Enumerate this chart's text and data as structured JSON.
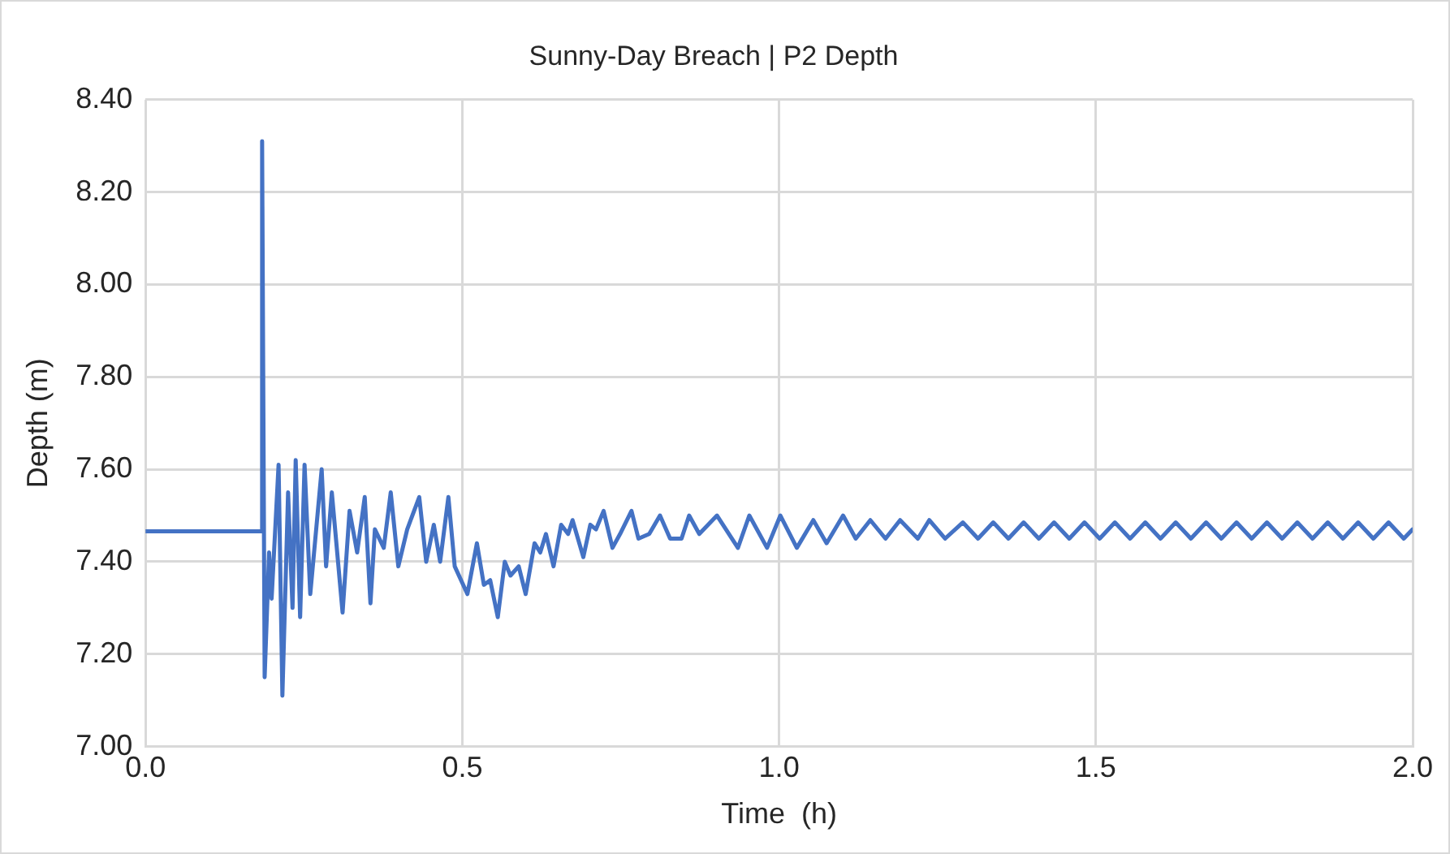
{
  "chart_data": {
    "type": "line",
    "title": "Sunny-Day Breach | P2 Depth",
    "xlabel": "Time  (h)",
    "ylabel": "Depth (m)",
    "xlim": [
      0,
      2
    ],
    "xticks": [
      {
        "value": 0,
        "label": "0.0"
      },
      {
        "value": 0.5,
        "label": "0.5"
      },
      {
        "value": 1,
        "label": "1.0"
      },
      {
        "value": 1.5,
        "label": "1.5"
      },
      {
        "value": 2,
        "label": "2.0"
      }
    ],
    "ylim": [
      7,
      8.4
    ],
    "yticks": [
      {
        "value": 7,
        "label": "7.00"
      },
      {
        "value": 7.2,
        "label": "7.20"
      },
      {
        "value": 7.4,
        "label": "7.40"
      },
      {
        "value": 7.6,
        "label": "7.60"
      },
      {
        "value": 7.8,
        "label": "7.80"
      },
      {
        "value": 8,
        "label": "8.00"
      },
      {
        "value": 8.2,
        "label": "8.20"
      },
      {
        "value": 8.4,
        "label": "8.40"
      }
    ],
    "grid": true,
    "legend": false,
    "marker": "none",
    "line_style": "solid",
    "series": [
      {
        "color": "#4472c4",
        "x": [
          0,
          0.183,
          0.184,
          0.188,
          0.195,
          0.199,
          0.21,
          0.216,
          0.225,
          0.232,
          0.237,
          0.244,
          0.251,
          0.26,
          0.278,
          0.285,
          0.294,
          0.311,
          0.322,
          0.334,
          0.346,
          0.355,
          0.362,
          0.376,
          0.387,
          0.399,
          0.413,
          0.432,
          0.443,
          0.455,
          0.465,
          0.478,
          0.488,
          0.508,
          0.523,
          0.534,
          0.544,
          0.556,
          0.567,
          0.576,
          0.589,
          0.6,
          0.614,
          0.623,
          0.632,
          0.644,
          0.656,
          0.667,
          0.674,
          0.691,
          0.702,
          0.711,
          0.723,
          0.737,
          0.749,
          0.767,
          0.778,
          0.795,
          0.812,
          0.828,
          0.846,
          0.858,
          0.874,
          0.902,
          0.935,
          0.953,
          0.981,
          1.002,
          1.028,
          1.054,
          1.075,
          1.101,
          1.121,
          1.144,
          1.168,
          1.191,
          1.219,
          1.237,
          1.262,
          1.29,
          1.314,
          1.338,
          1.362,
          1.386,
          1.41,
          1.434,
          1.458,
          1.482,
          1.506,
          1.53,
          1.554,
          1.578,
          1.602,
          1.626,
          1.65,
          1.674,
          1.698,
          1.722,
          1.746,
          1.77,
          1.794,
          1.818,
          1.842,
          1.866,
          1.89,
          1.914,
          1.938,
          1.962,
          1.986,
          2
        ],
        "values": [
          7.466,
          7.466,
          8.31,
          7.15,
          7.42,
          7.32,
          7.61,
          7.11,
          7.55,
          7.3,
          7.62,
          7.28,
          7.61,
          7.33,
          7.6,
          7.39,
          7.55,
          7.29,
          7.51,
          7.42,
          7.54,
          7.31,
          7.47,
          7.43,
          7.55,
          7.39,
          7.47,
          7.54,
          7.4,
          7.48,
          7.4,
          7.54,
          7.39,
          7.33,
          7.44,
          7.35,
          7.36,
          7.28,
          7.4,
          7.37,
          7.39,
          7.33,
          7.44,
          7.42,
          7.46,
          7.39,
          7.48,
          7.46,
          7.49,
          7.41,
          7.48,
          7.47,
          7.51,
          7.43,
          7.46,
          7.51,
          7.45,
          7.46,
          7.5,
          7.45,
          7.45,
          7.5,
          7.46,
          7.5,
          7.43,
          7.5,
          7.43,
          7.5,
          7.43,
          7.49,
          7.44,
          7.5,
          7.45,
          7.49,
          7.45,
          7.49,
          7.45,
          7.49,
          7.45,
          7.485,
          7.45,
          7.485,
          7.45,
          7.485,
          7.45,
          7.485,
          7.45,
          7.485,
          7.45,
          7.485,
          7.45,
          7.485,
          7.45,
          7.485,
          7.45,
          7.485,
          7.45,
          7.485,
          7.45,
          7.485,
          7.45,
          7.485,
          7.45,
          7.485,
          7.45,
          7.485,
          7.45,
          7.485,
          7.45,
          7.47
        ]
      }
    ]
  }
}
